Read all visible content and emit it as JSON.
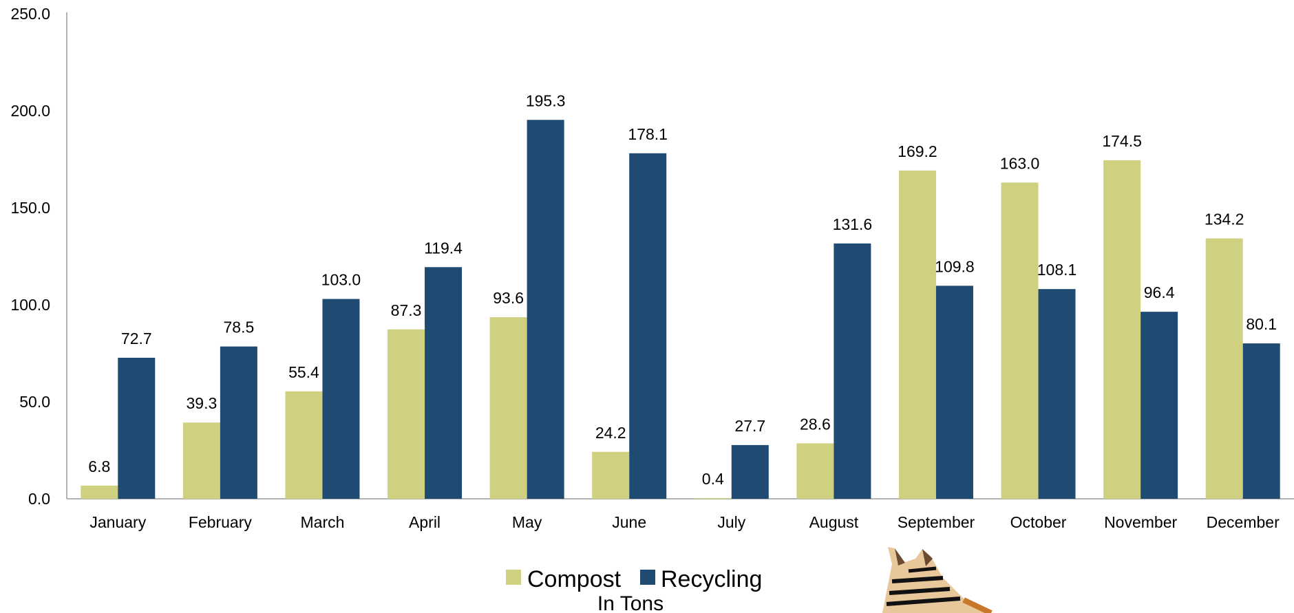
{
  "chart_data": {
    "type": "bar",
    "categories": [
      "January",
      "February",
      "March",
      "April",
      "May",
      "June",
      "July",
      "August",
      "September",
      "October",
      "November",
      "December"
    ],
    "series": [
      {
        "name": "Compost",
        "color": "#cfd080",
        "values": [
          6.8,
          39.3,
          55.4,
          87.3,
          93.6,
          24.2,
          0.4,
          28.6,
          169.2,
          163.0,
          174.5,
          134.2
        ]
      },
      {
        "name": "Recycling",
        "color": "#1f4a72",
        "values": [
          72.7,
          78.5,
          103.0,
          119.4,
          195.3,
          178.1,
          27.7,
          131.6,
          109.8,
          108.1,
          96.4,
          80.1
        ]
      }
    ],
    "yticks": [
      "0.0",
      "50.0",
      "100.0",
      "150.0",
      "200.0",
      "250.0"
    ],
    "ylim": [
      0,
      250
    ],
    "legend_placement": "bottom",
    "units_label": "In Tons",
    "grid": false
  },
  "decoration": {
    "icon": "zebra-icon"
  }
}
